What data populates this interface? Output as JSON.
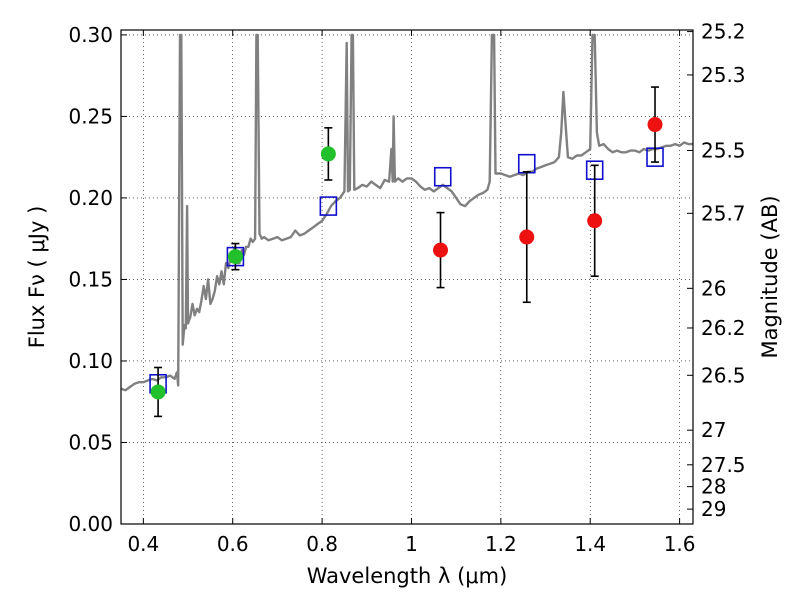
{
  "chart_data": {
    "type": "scatter",
    "title": "",
    "xlabel": "Wavelength  λ (μm)",
    "ylabel": "Flux  Fν ( μJy )",
    "y2label": "Magnitude (AB)",
    "xlim": [
      0.35,
      1.63
    ],
    "ylim": [
      0.0,
      0.303
    ],
    "grid": true,
    "x_ticks": [
      {
        "value": 0.4,
        "label": "0.4"
      },
      {
        "value": 0.6,
        "label": "0.6"
      },
      {
        "value": 0.8,
        "label": "0.8"
      },
      {
        "value": 1.0,
        "label": "1"
      },
      {
        "value": 1.2,
        "label": "1.2"
      },
      {
        "value": 1.4,
        "label": "1.4"
      },
      {
        "value": 1.6,
        "label": "1.6"
      }
    ],
    "y_ticks": [
      {
        "value": 0.0,
        "label": "0.00"
      },
      {
        "value": 0.05,
        "label": "0.05"
      },
      {
        "value": 0.1,
        "label": "0.10"
      },
      {
        "value": 0.15,
        "label": "0.15"
      },
      {
        "value": 0.2,
        "label": "0.20"
      },
      {
        "value": 0.25,
        "label": "0.25"
      },
      {
        "value": 0.3,
        "label": "0.30"
      }
    ],
    "y2_ticks": [
      {
        "value": 25.2,
        "label": "25.2"
      },
      {
        "value": 25.3,
        "label": "25.3"
      },
      {
        "value": 25.5,
        "label": "25.5"
      },
      {
        "value": 25.7,
        "label": "25.7"
      },
      {
        "value": 26.0,
        "label": "26"
      },
      {
        "value": 26.2,
        "label": "26.2"
      },
      {
        "value": 26.5,
        "label": "26.5"
      },
      {
        "value": 27.0,
        "label": "27"
      },
      {
        "value": 27.5,
        "label": "27.5"
      },
      {
        "value": 28.0,
        "label": "28"
      },
      {
        "value": 29.0,
        "label": "29"
      }
    ],
    "colors": {
      "spectrum": "#808080",
      "green": "#22c02a",
      "red": "#ee1111",
      "model_box": "#1010cc",
      "error_bar": "#000000"
    },
    "series": [
      {
        "kind": "spectrum",
        "points": [
          [
            0.35,
            0.083
          ],
          [
            0.36,
            0.082
          ],
          [
            0.37,
            0.084
          ],
          [
            0.38,
            0.086
          ],
          [
            0.39,
            0.087
          ],
          [
            0.4,
            0.087
          ],
          [
            0.41,
            0.088
          ],
          [
            0.42,
            0.089
          ],
          [
            0.43,
            0.088
          ],
          [
            0.44,
            0.09
          ],
          [
            0.45,
            0.09
          ],
          [
            0.46,
            0.091
          ],
          [
            0.47,
            0.089
          ],
          [
            0.475,
            0.093
          ],
          [
            0.478,
            0.085
          ],
          [
            0.482,
            0.3
          ],
          [
            0.485,
            0.3
          ],
          [
            0.488,
            0.11
          ],
          [
            0.492,
            0.122
          ],
          [
            0.495,
            0.12
          ],
          [
            0.498,
            0.195
          ],
          [
            0.5,
            0.123
          ],
          [
            0.505,
            0.127
          ],
          [
            0.51,
            0.135
          ],
          [
            0.515,
            0.128
          ],
          [
            0.52,
            0.132
          ],
          [
            0.525,
            0.13
          ],
          [
            0.53,
            0.137
          ],
          [
            0.535,
            0.146
          ],
          [
            0.54,
            0.138
          ],
          [
            0.545,
            0.15
          ],
          [
            0.55,
            0.135
          ],
          [
            0.555,
            0.138
          ],
          [
            0.56,
            0.143
          ],
          [
            0.565,
            0.152
          ],
          [
            0.57,
            0.147
          ],
          [
            0.575,
            0.155
          ],
          [
            0.58,
            0.147
          ],
          [
            0.585,
            0.16
          ],
          [
            0.59,
            0.157
          ],
          [
            0.595,
            0.163
          ],
          [
            0.6,
            0.165
          ],
          [
            0.605,
            0.17
          ],
          [
            0.61,
            0.16
          ],
          [
            0.615,
            0.16
          ],
          [
            0.62,
            0.168
          ],
          [
            0.625,
            0.165
          ],
          [
            0.63,
            0.17
          ],
          [
            0.635,
            0.17
          ],
          [
            0.64,
            0.175
          ],
          [
            0.645,
            0.173
          ],
          [
            0.65,
            0.175
          ],
          [
            0.653,
            0.3
          ],
          [
            0.656,
            0.3
          ],
          [
            0.66,
            0.178
          ],
          [
            0.665,
            0.175
          ],
          [
            0.67,
            0.176
          ],
          [
            0.68,
            0.174
          ],
          [
            0.69,
            0.175
          ],
          [
            0.7,
            0.176
          ],
          [
            0.71,
            0.174
          ],
          [
            0.72,
            0.175
          ],
          [
            0.73,
            0.176
          ],
          [
            0.74,
            0.18
          ],
          [
            0.75,
            0.177
          ],
          [
            0.76,
            0.178
          ],
          [
            0.77,
            0.18
          ],
          [
            0.78,
            0.182
          ],
          [
            0.79,
            0.184
          ],
          [
            0.8,
            0.186
          ],
          [
            0.81,
            0.19
          ],
          [
            0.82,
            0.195
          ],
          [
            0.83,
            0.198
          ],
          [
            0.84,
            0.2
          ],
          [
            0.85,
            0.204
          ],
          [
            0.855,
            0.295
          ],
          [
            0.858,
            0.204
          ],
          [
            0.862,
            0.205
          ],
          [
            0.866,
            0.3
          ],
          [
            0.869,
            0.3
          ],
          [
            0.872,
            0.205
          ],
          [
            0.88,
            0.206
          ],
          [
            0.89,
            0.208
          ],
          [
            0.9,
            0.207
          ],
          [
            0.91,
            0.21
          ],
          [
            0.92,
            0.208
          ],
          [
            0.93,
            0.206
          ],
          [
            0.94,
            0.211
          ],
          [
            0.95,
            0.21
          ],
          [
            0.955,
            0.23
          ],
          [
            0.958,
            0.21
          ],
          [
            0.96,
            0.25
          ],
          [
            0.963,
            0.21
          ],
          [
            0.97,
            0.212
          ],
          [
            0.98,
            0.21
          ],
          [
            0.99,
            0.212
          ],
          [
            1.0,
            0.212
          ],
          [
            1.01,
            0.21
          ],
          [
            1.02,
            0.207
          ],
          [
            1.03,
            0.205
          ],
          [
            1.04,
            0.206
          ],
          [
            1.05,
            0.204
          ],
          [
            1.06,
            0.206
          ],
          [
            1.07,
            0.208
          ],
          [
            1.08,
            0.206
          ],
          [
            1.09,
            0.204
          ],
          [
            1.1,
            0.2
          ],
          [
            1.11,
            0.196
          ],
          [
            1.12,
            0.195
          ],
          [
            1.13,
            0.198
          ],
          [
            1.14,
            0.2
          ],
          [
            1.15,
            0.202
          ],
          [
            1.16,
            0.203
          ],
          [
            1.17,
            0.205
          ],
          [
            1.175,
            0.21
          ],
          [
            1.18,
            0.3
          ],
          [
            1.185,
            0.3
          ],
          [
            1.188,
            0.215
          ],
          [
            1.2,
            0.215
          ],
          [
            1.21,
            0.214
          ],
          [
            1.22,
            0.213
          ],
          [
            1.23,
            0.214
          ],
          [
            1.24,
            0.215
          ],
          [
            1.25,
            0.214
          ],
          [
            1.26,
            0.216
          ],
          [
            1.27,
            0.216
          ],
          [
            1.28,
            0.218
          ],
          [
            1.29,
            0.219
          ],
          [
            1.3,
            0.22
          ],
          [
            1.31,
            0.221
          ],
          [
            1.32,
            0.222
          ],
          [
            1.33,
            0.225
          ],
          [
            1.335,
            0.24
          ],
          [
            1.34,
            0.265
          ],
          [
            1.345,
            0.245
          ],
          [
            1.35,
            0.225
          ],
          [
            1.36,
            0.224
          ],
          [
            1.37,
            0.226
          ],
          [
            1.38,
            0.226
          ],
          [
            1.39,
            0.228
          ],
          [
            1.4,
            0.23
          ],
          [
            1.405,
            0.3
          ],
          [
            1.41,
            0.3
          ],
          [
            1.415,
            0.24
          ],
          [
            1.42,
            0.232
          ],
          [
            1.43,
            0.233
          ],
          [
            1.44,
            0.23
          ],
          [
            1.45,
            0.228
          ],
          [
            1.46,
            0.229
          ],
          [
            1.47,
            0.228
          ],
          [
            1.48,
            0.228
          ],
          [
            1.49,
            0.229
          ],
          [
            1.5,
            0.229
          ],
          [
            1.51,
            0.228
          ],
          [
            1.52,
            0.23
          ],
          [
            1.53,
            0.229
          ],
          [
            1.54,
            0.23
          ],
          [
            1.55,
            0.23
          ],
          [
            1.56,
            0.231
          ],
          [
            1.57,
            0.232
          ],
          [
            1.58,
            0.232
          ],
          [
            1.59,
            0.233
          ],
          [
            1.6,
            0.232
          ],
          [
            1.61,
            0.234
          ],
          [
            1.62,
            0.233
          ],
          [
            1.63,
            0.233
          ]
        ]
      },
      {
        "kind": "model-squares",
        "points": [
          {
            "x": 0.433,
            "y": 0.086
          },
          {
            "x": 0.606,
            "y": 0.164
          },
          {
            "x": 0.814,
            "y": 0.195
          },
          {
            "x": 1.07,
            "y": 0.213
          },
          {
            "x": 1.258,
            "y": 0.221
          },
          {
            "x": 1.41,
            "y": 0.217
          },
          {
            "x": 1.545,
            "y": 0.225
          }
        ]
      },
      {
        "kind": "green-detections",
        "points": [
          {
            "x": 0.433,
            "y": 0.081,
            "err": 0.015
          },
          {
            "x": 0.606,
            "y": 0.164,
            "err": 0.008
          },
          {
            "x": 0.814,
            "y": 0.227,
            "err": 0.016
          }
        ]
      },
      {
        "kind": "red-detections",
        "points": [
          {
            "x": 1.065,
            "y": 0.168,
            "err": 0.023
          },
          {
            "x": 1.258,
            "y": 0.176,
            "err": 0.04
          },
          {
            "x": 1.41,
            "y": 0.186,
            "err": 0.034
          },
          {
            "x": 1.545,
            "y": 0.245,
            "err": 0.023
          }
        ]
      }
    ]
  }
}
